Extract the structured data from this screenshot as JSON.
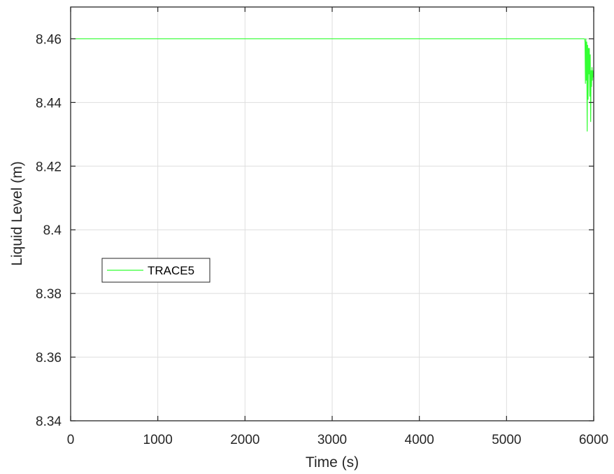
{
  "chart_data": {
    "type": "line",
    "xlabel": "Time (s)",
    "ylabel": "Liquid Level (m)",
    "xlim": [
      0,
      6000
    ],
    "ylim": [
      8.34,
      8.47
    ],
    "xticks": [
      0,
      1000,
      2000,
      3000,
      4000,
      5000,
      6000
    ],
    "xtick_labels": [
      "0",
      "1000",
      "2000",
      "3000",
      "4000",
      "5000",
      "6000"
    ],
    "yticks": [
      8.34,
      8.36,
      8.38,
      8.4,
      8.42,
      8.44,
      8.46
    ],
    "ytick_labels": [
      "8.34",
      "8.36",
      "8.38",
      "8.4",
      "8.42",
      "8.44",
      "8.46"
    ],
    "grid": true,
    "legend_position": "left",
    "series": [
      {
        "name": "TRACE5",
        "color": "#33ff33",
        "x": [
          0,
          5895,
          5900,
          5905,
          5910,
          5915,
          5920,
          5925,
          5930,
          5935,
          5940,
          5945,
          5950,
          5955,
          5960,
          5965,
          5970,
          5975,
          5980,
          5985,
          5990,
          5995,
          6000
        ],
        "y": [
          8.46,
          8.46,
          8.459,
          8.446,
          8.46,
          8.447,
          8.459,
          8.431,
          8.458,
          8.441,
          8.457,
          8.449,
          8.457,
          8.442,
          8.455,
          8.434,
          8.45,
          8.445,
          8.451,
          8.447,
          8.45,
          8.448,
          8.449
        ]
      }
    ]
  }
}
